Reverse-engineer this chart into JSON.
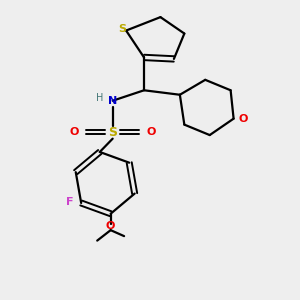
{
  "background_color": "#eeeeee",
  "atom_colors": {
    "S": "#bbaa00",
    "N": "#0000cc",
    "O": "#ee0000",
    "F": "#cc44cc",
    "C": "#000000",
    "H": "#447777"
  },
  "figsize": [
    3.0,
    3.0
  ],
  "dpi": 100
}
